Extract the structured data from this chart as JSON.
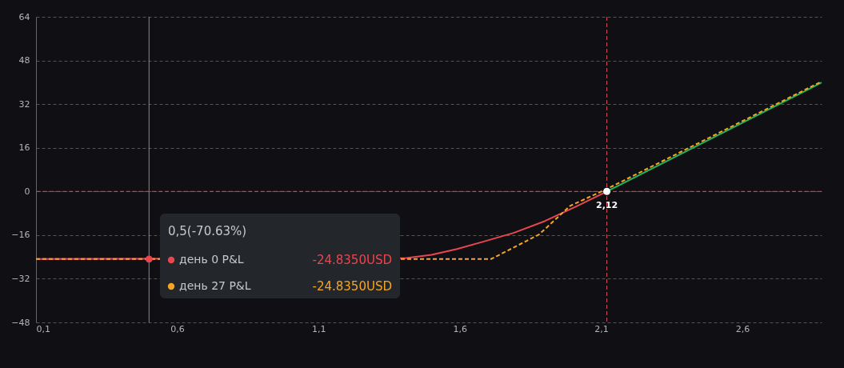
{
  "chart_data": {
    "type": "line",
    "series": [
      {
        "name": "день 0 P&L",
        "color": "#e8474f",
        "line_style": "solid",
        "x": [
          0.1,
          1.41,
          1.5,
          1.59,
          1.68,
          1.79,
          1.9,
          2.01,
          2.12
        ],
        "values": [
          -24.8,
          -24.4,
          -23.2,
          -21.1,
          -18.5,
          -15.2,
          -10.9,
          -5.6,
          0
        ]
      },
      {
        "type": "line",
        "color": "#22b35e",
        "line_style": "solid",
        "x": [
          2.12,
          2.88
        ],
        "values": [
          0,
          39.9
        ]
      },
      {
        "name": "день 27 P&L",
        "color": "#f5a623",
        "line_style": "dashed",
        "x": [
          0.1,
          1.71,
          1.88,
          1.99,
          2.12,
          2.88
        ],
        "values": [
          -24.8,
          -24.8,
          -15.8,
          -5.3,
          0.9,
          40.3
        ]
      },
      {
        "type": "scatter",
        "color": "#e8474f",
        "x": [
          0.5
        ],
        "values": [
          -24.8
        ]
      },
      {
        "type": "scatter",
        "color": "#ffffff",
        "x": [
          2.12
        ],
        "values": [
          0
        ]
      }
    ],
    "xlim": [
      0.1,
      2.88
    ],
    "xticks": [
      {
        "value": 0.1,
        "label": "0,1"
      },
      {
        "value": 0.6,
        "label": "0,6"
      },
      {
        "value": 1.1,
        "label": "1,1"
      },
      {
        "value": 1.6,
        "label": "1,6"
      },
      {
        "value": 2.1,
        "label": "2,1"
      },
      {
        "value": 2.6,
        "label": "2,6"
      }
    ],
    "ylim": [
      -48,
      64
    ],
    "yticks": [
      -48,
      -32,
      -16,
      0,
      16,
      32,
      48,
      64
    ],
    "grid": "y",
    "legend": "bottom left",
    "ref_lines": [
      {
        "axis": "x",
        "value": 0.5,
        "color": "#8a8a8a",
        "line_style": "solid"
      },
      {
        "axis": "y",
        "value": 0,
        "color": "#e8474f",
        "line_style": "dashed"
      },
      {
        "axis": "x",
        "value": 2.12,
        "color": "#e8474f",
        "line_style": "dashed"
      }
    ],
    "annotations": [
      {
        "text": "0,5(-70.63%)"
      },
      "-24.8350USD",
      "-24.8350USD",
      {
        "text": "2,12",
        "x": 2.12,
        "y": 0
      }
    ]
  }
}
